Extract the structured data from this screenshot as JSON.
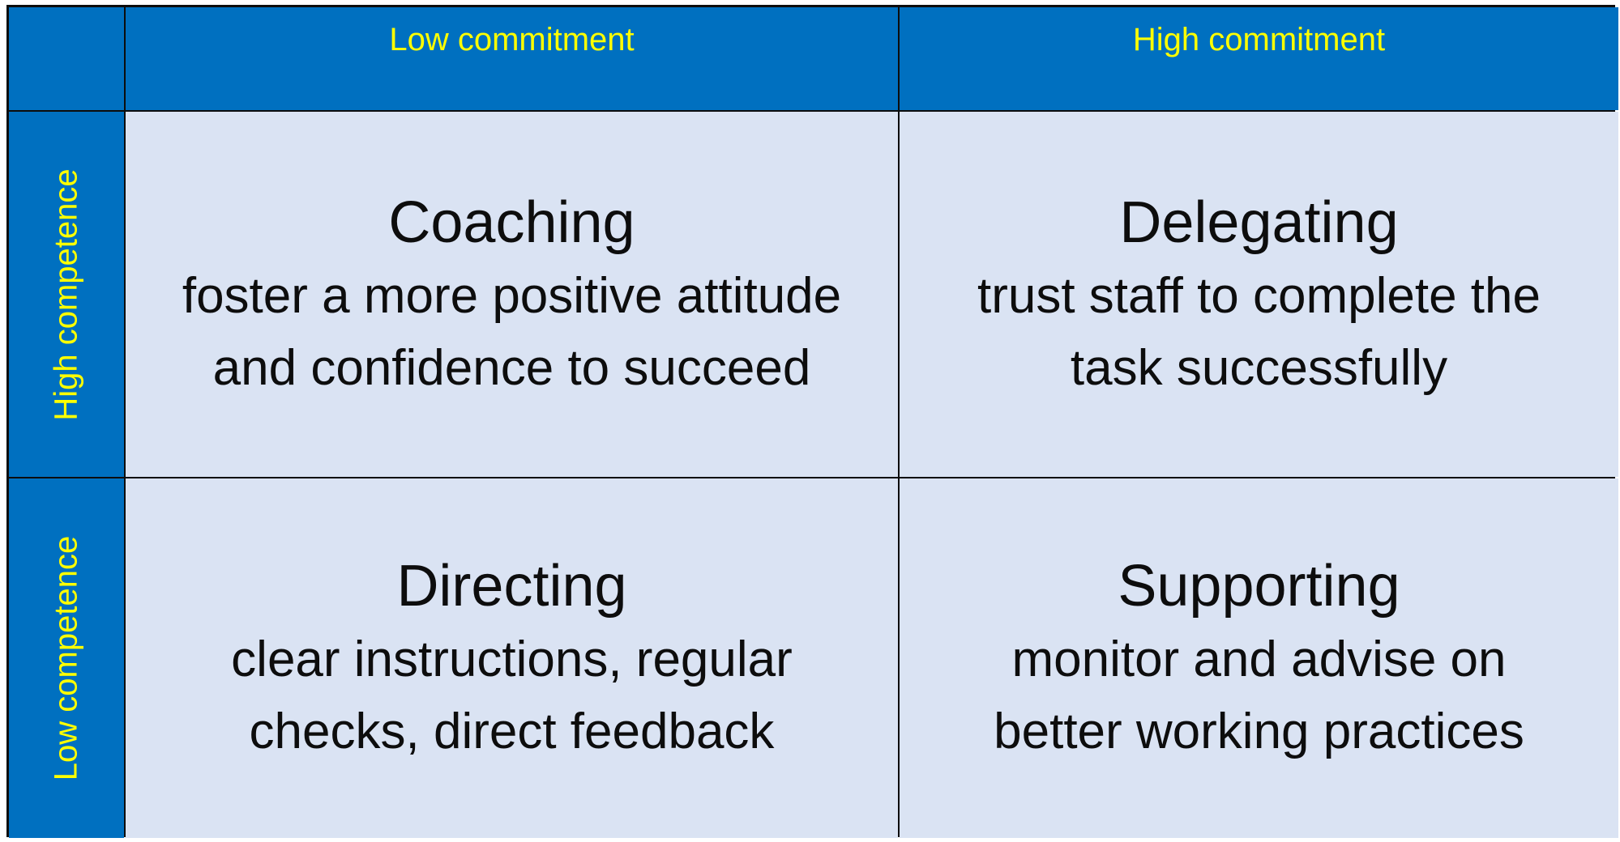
{
  "columns": {
    "low_commitment": "Low commitment",
    "high_commitment": "High commitment"
  },
  "rows": {
    "high_competence": "High competence",
    "low_competence": "Low competence"
  },
  "quadrants": {
    "coaching": {
      "title": "Coaching",
      "line1": "foster a more positive attitude",
      "line2": "and confidence to succeed"
    },
    "delegating": {
      "title": "Delegating",
      "line1": "trust staff to complete the",
      "line2": "task successfully"
    },
    "directing": {
      "title": "Directing",
      "line1": "clear instructions, regular",
      "line2": "checks, direct feedback"
    },
    "supporting": {
      "title": "Supporting",
      "line1": "monitor and advise on",
      "line2": "better working practices"
    }
  },
  "colors": {
    "header_bg": "#0070c0",
    "header_text": "#ffff00",
    "cell_bg": "#dae3f3",
    "text": "#0d0d0d"
  }
}
